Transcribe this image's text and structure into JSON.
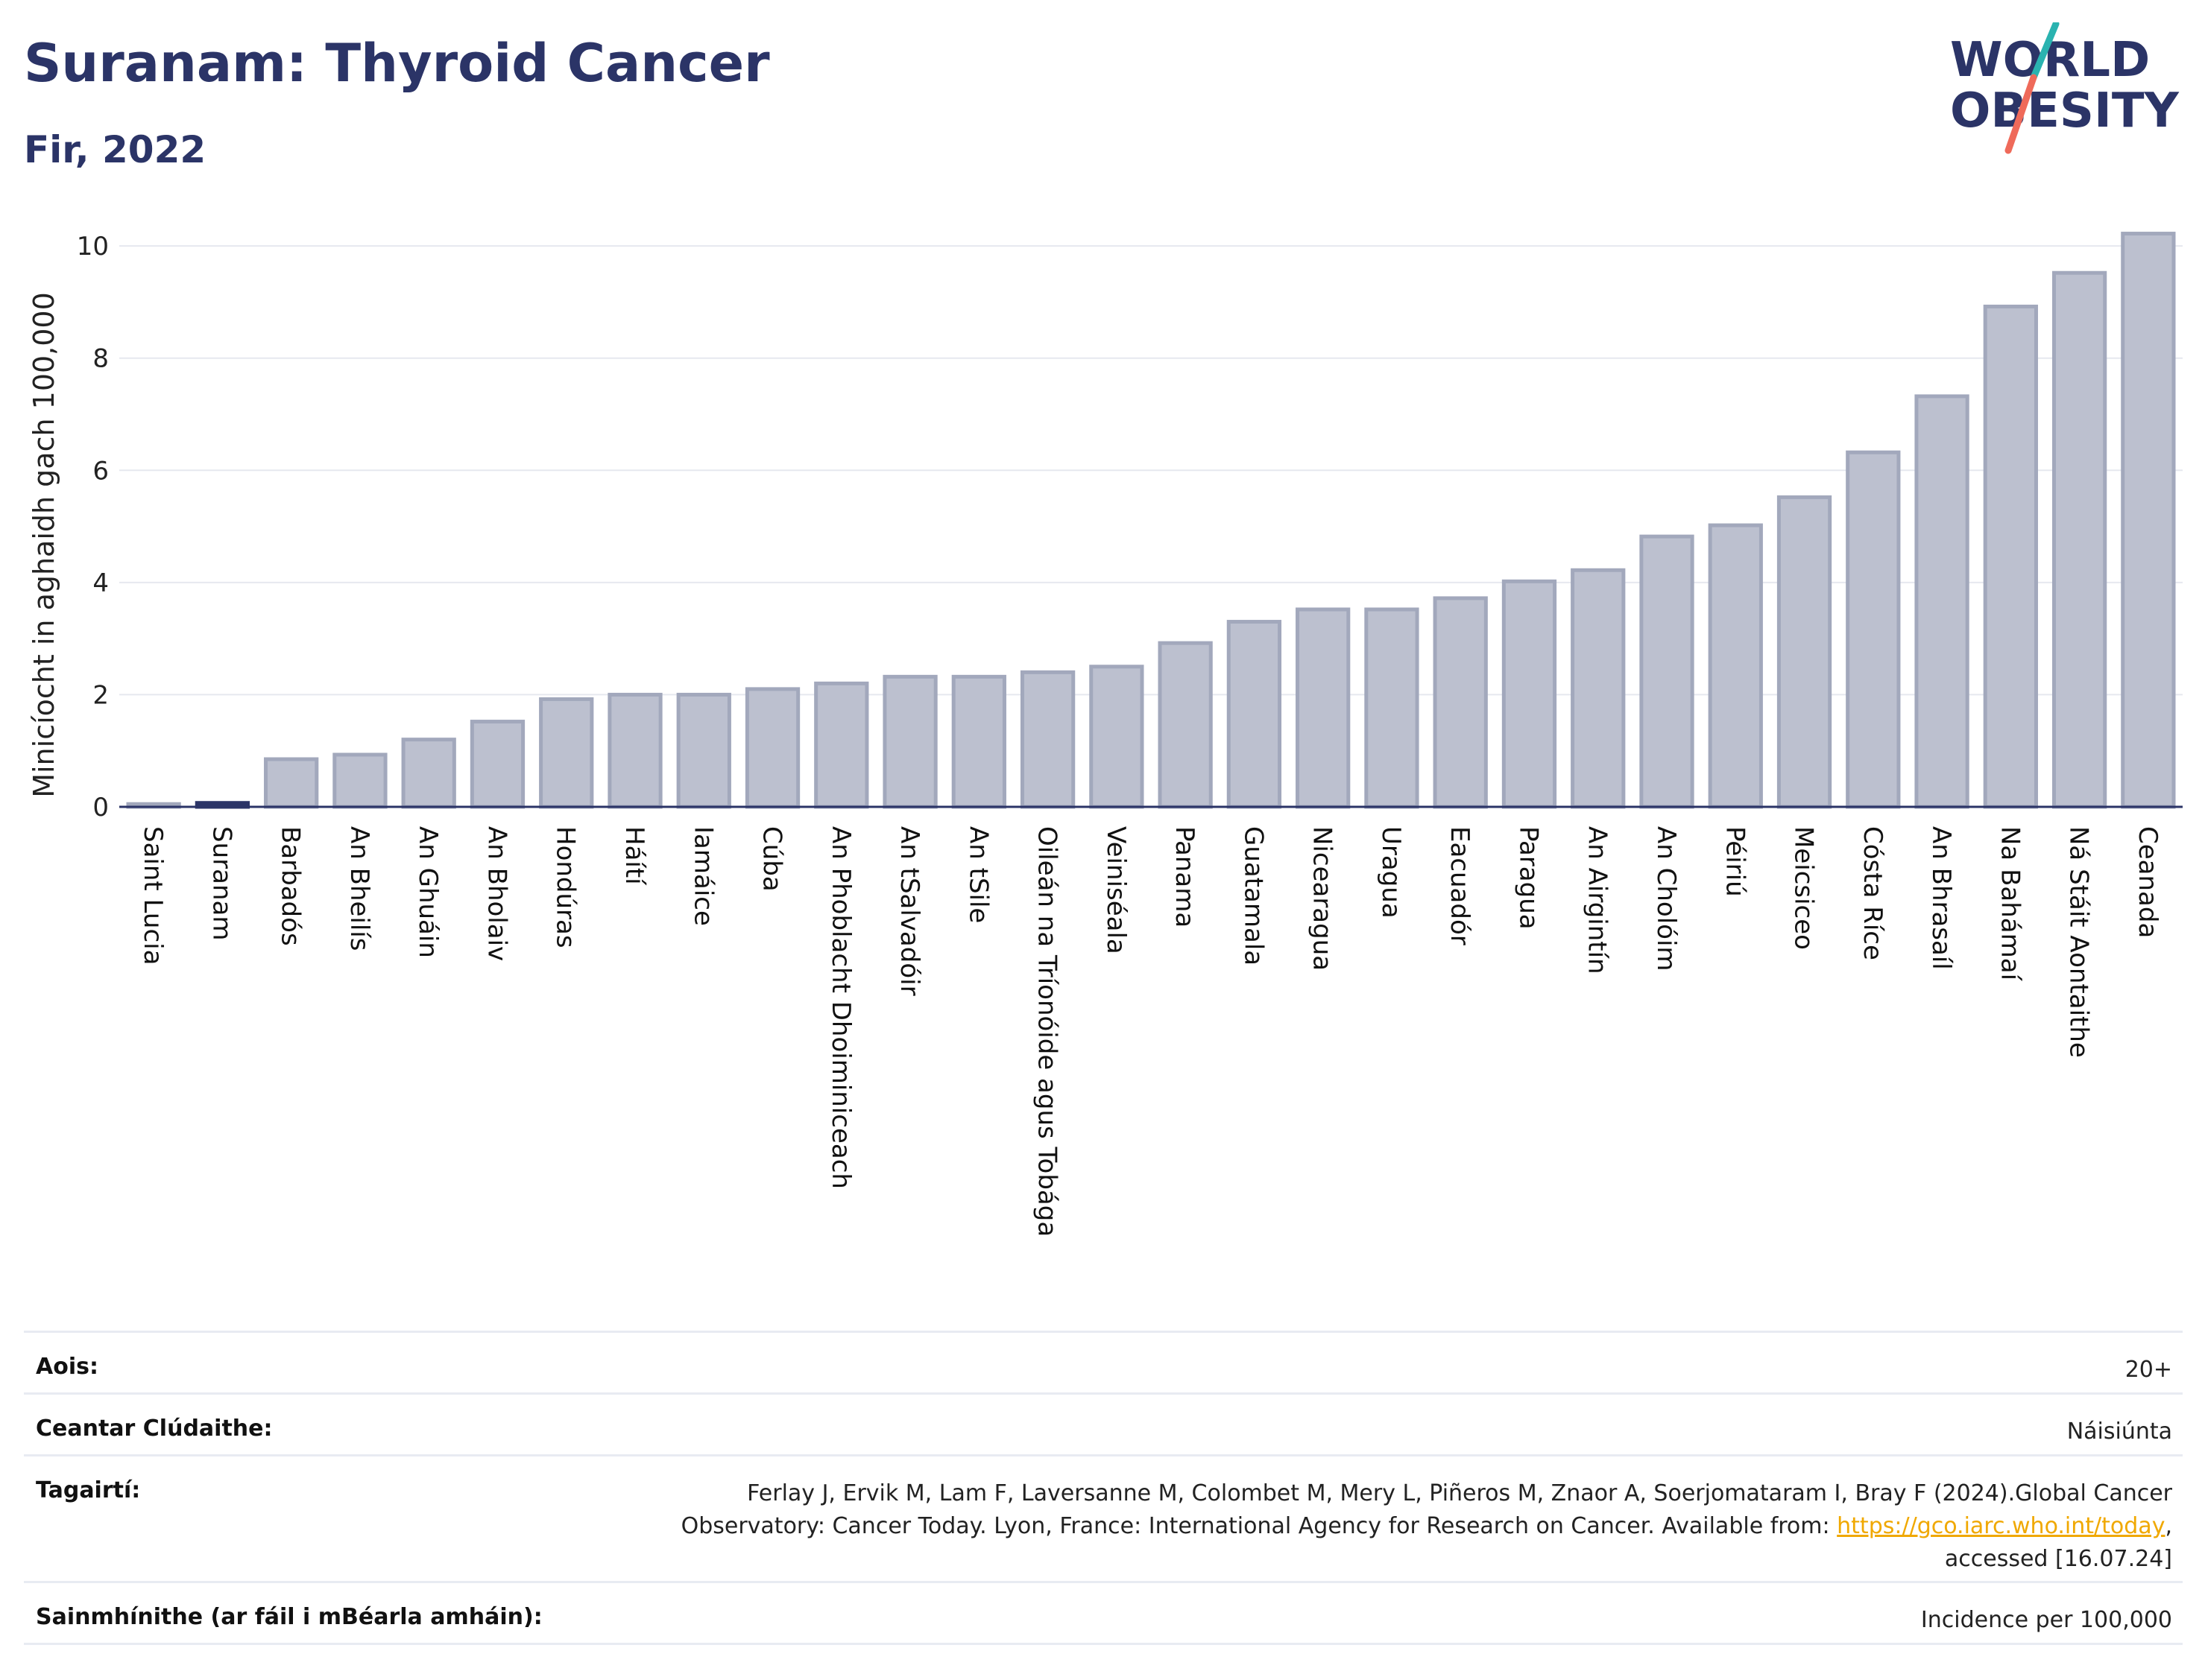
{
  "header": {
    "title": "Suranam: Thyroid Cancer",
    "subtitle": "Fir, 2022"
  },
  "logo": {
    "line1": "WORLD",
    "line2": "OBESITY",
    "colors": {
      "text": "#2b3467",
      "slash_top": "#2ab3b0",
      "slash_bottom": "#ef6a5a"
    }
  },
  "chart_data": {
    "type": "bar",
    "title": "Suranam: Thyroid Cancer",
    "subtitle": "Fir, 2022",
    "xlabel": "",
    "ylabel": "Minicíocht in aghaidh gach 100,000",
    "ylim": [
      0,
      10.4
    ],
    "yticks": [
      0,
      2,
      4,
      6,
      8,
      10
    ],
    "grid": true,
    "highlight": "Suranam",
    "colors": {
      "bar": "#bcc0cf",
      "bar_edge": "#a2a8bc",
      "highlight": "#2b3467",
      "grid": "#e6e8ef",
      "axis": "#2b3467"
    },
    "categories": [
      "Saint Lucia",
      "Suranam",
      "Barbadós",
      "An Bheilís",
      "An Ghuáin",
      "An Bholaiv",
      "Hondúras",
      "Háítí",
      "Iamáice",
      "Cúba",
      "An Phoblacht Dhoiminiceach",
      "An tSalvadóir",
      "An tSile",
      "Oileán na Tríonóide agus Tobága",
      "Veiniséala",
      "Panama",
      "Guatamala",
      "Nicearagua",
      "Uragua",
      "Eacuadór",
      "Paragua",
      "An Airgintín",
      "An Cholóim",
      "Péiriú",
      "Meicsiceo",
      "Cósta Ríce",
      "An Bhrasaíl",
      "Na Bahámaí",
      "Ná Stáit Aontaithe",
      "Ceanada"
    ],
    "values": [
      0.05,
      0.07,
      0.85,
      0.93,
      1.2,
      1.52,
      1.92,
      2.0,
      2.0,
      2.1,
      2.2,
      2.32,
      2.32,
      2.4,
      2.5,
      2.92,
      3.3,
      3.52,
      3.52,
      3.72,
      4.02,
      4.22,
      4.82,
      5.02,
      5.52,
      6.32,
      7.32,
      8.92,
      9.52,
      10.22
    ]
  },
  "meta": {
    "age_label": "Aois:",
    "age_value": "20+",
    "coverage_label": "Ceantar Clúdaithe:",
    "coverage_value": "Náisiúnta",
    "refs_label": "Tagairtí:",
    "refs_text": "Ferlay J, Ervik M, Lam F, Laversanne M, Colombet M, Mery L, Piñeros M, Znaor A, Soerjomataram I, Bray F (2024).Global Cancer Observatory: Cancer Today. Lyon, France: International Agency for Research on Cancer. Available from: ",
    "refs_link": "https://gco.iarc.who.int/today",
    "refs_tail": ", accessed [16.07.24]",
    "def_label": "Sainmhínithe (ar fáil i mBéarla amháin):",
    "def_value": "Incidence per 100,000"
  }
}
